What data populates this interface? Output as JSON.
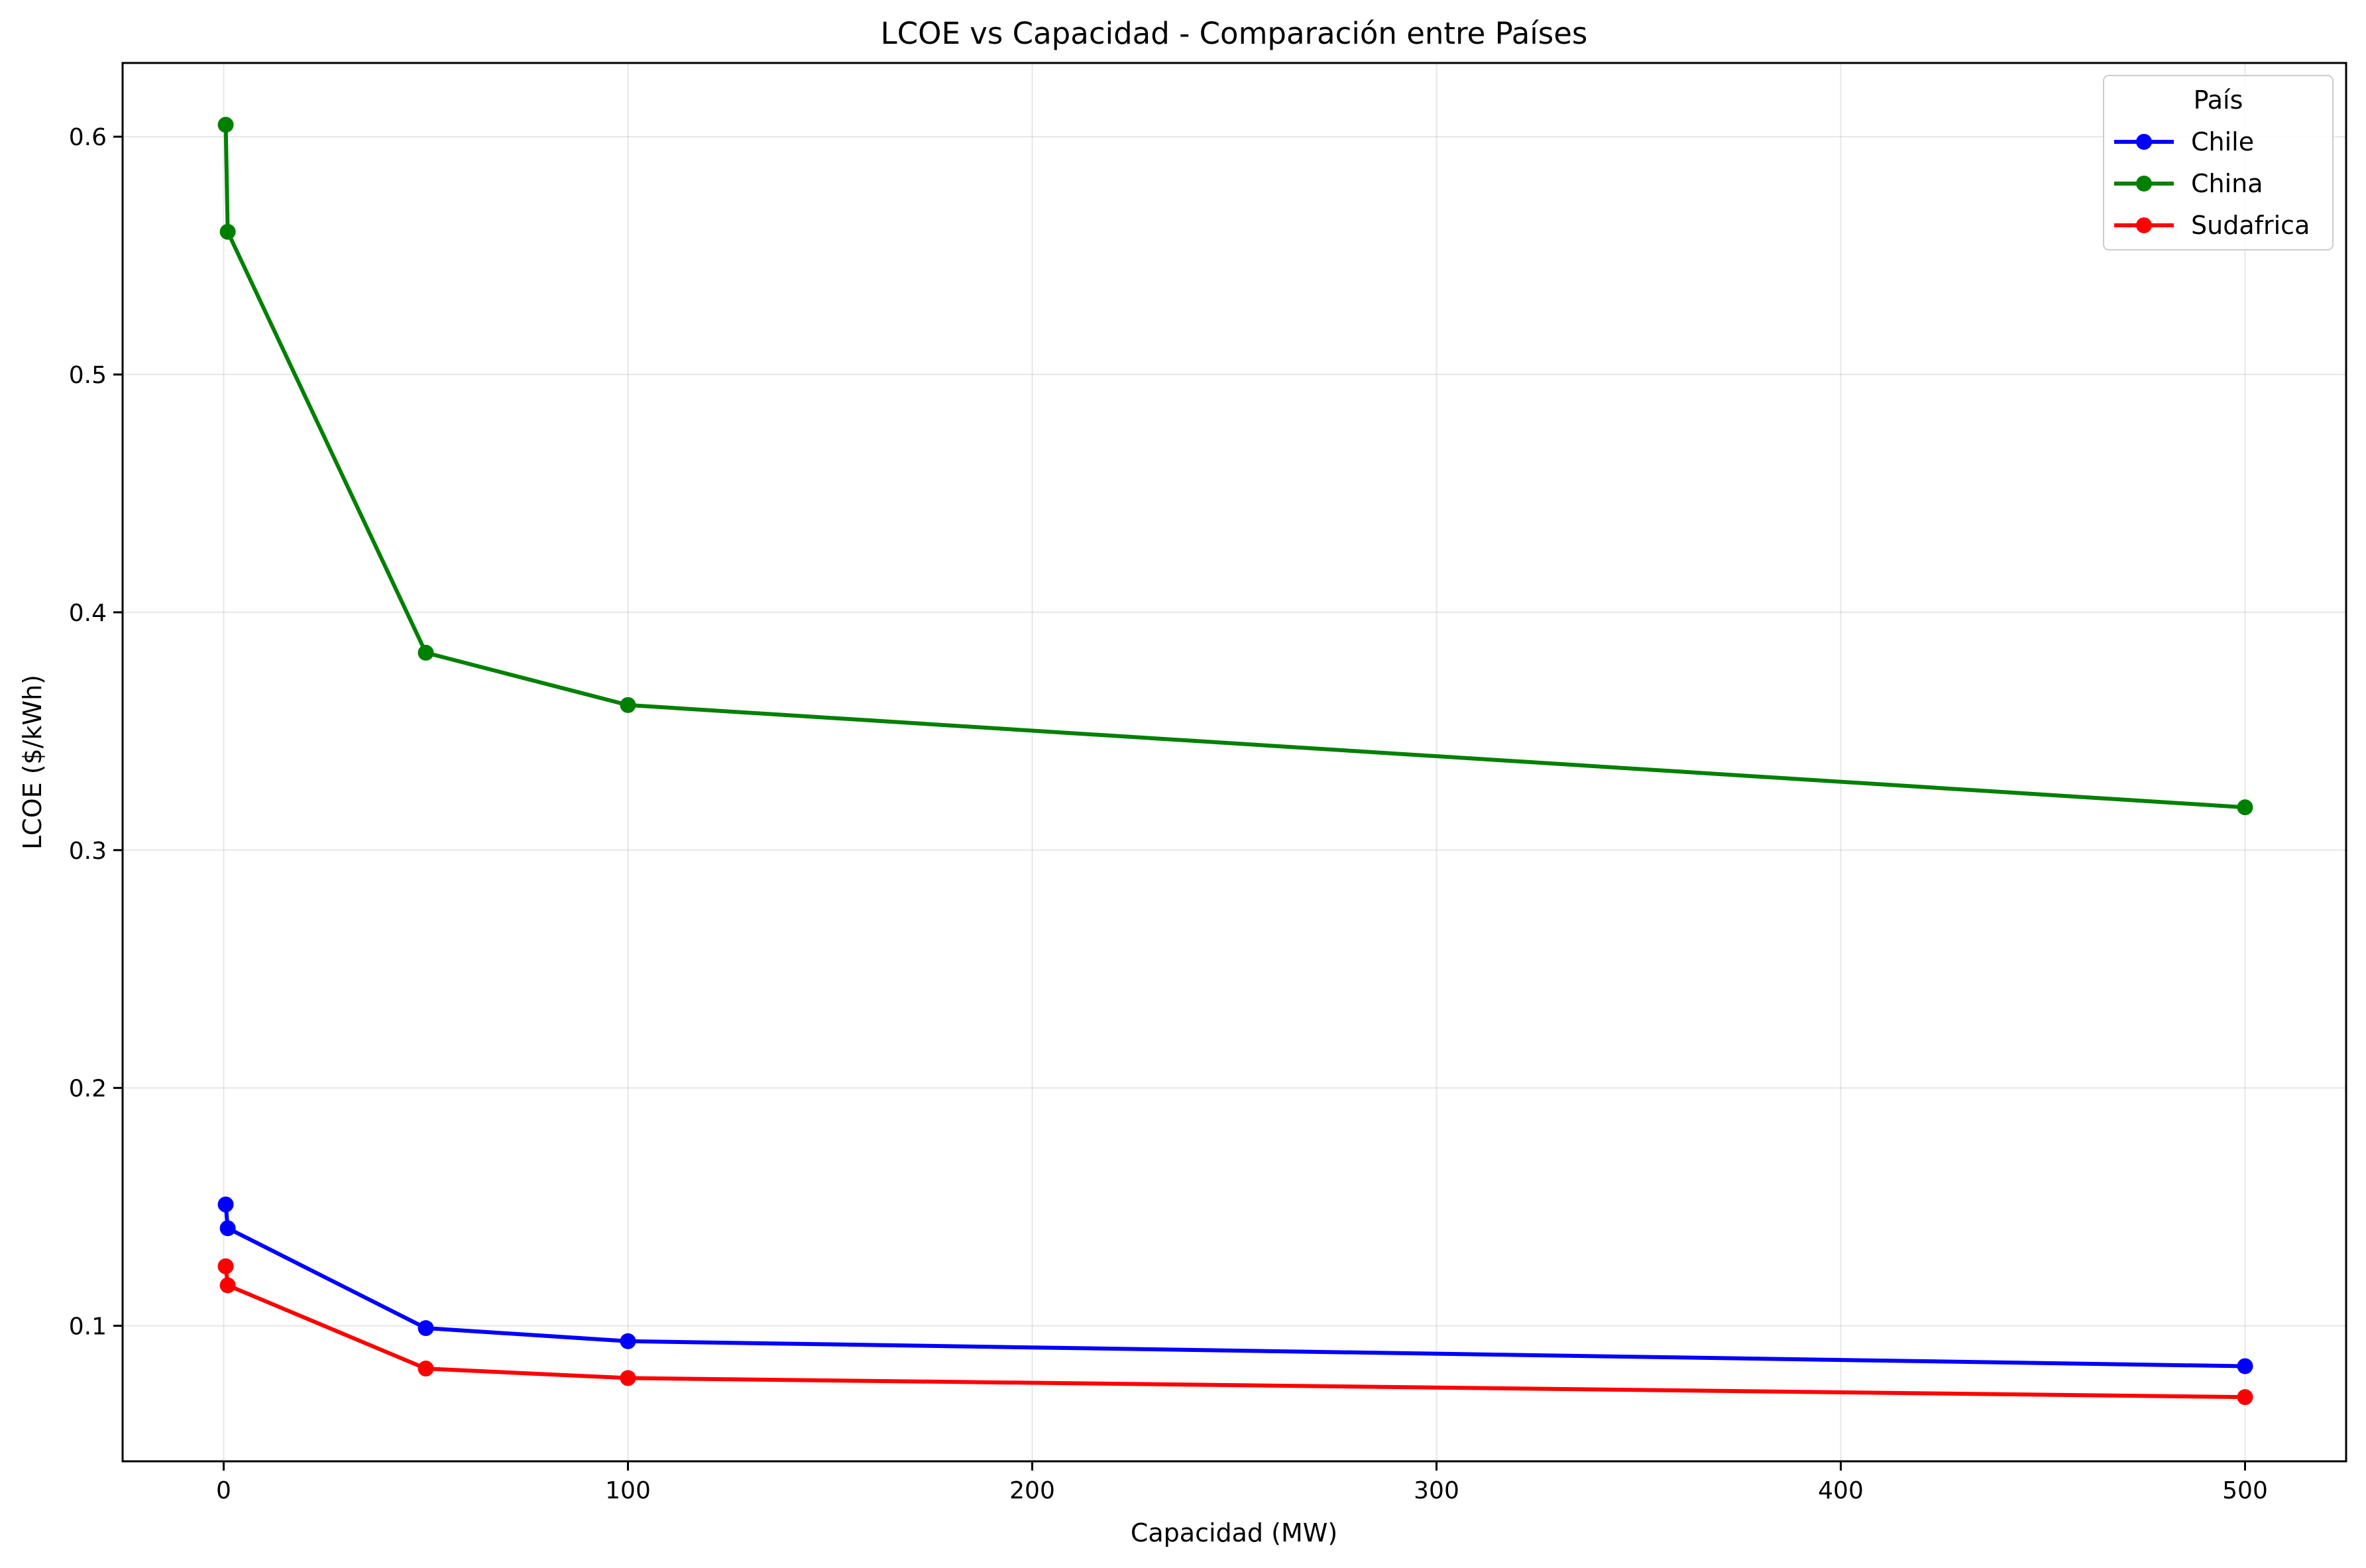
{
  "chart_data": {
    "type": "line",
    "title": "LCOE vs Capacidad - Comparación entre Países",
    "xlabel": "Capacidad (MW)",
    "ylabel": "LCOE ($/kWh)",
    "xlim": [
      -25,
      525
    ],
    "ylim": [
      0.043,
      0.631
    ],
    "xticks": [
      0,
      100,
      200,
      300,
      400,
      500
    ],
    "yticks": [
      0.1,
      0.2,
      0.3,
      0.4,
      0.5,
      0.6
    ],
    "xtick_labels": [
      "0",
      "100",
      "200",
      "300",
      "400",
      "500"
    ],
    "ytick_labels": [
      "0.1",
      "0.2",
      "0.3",
      "0.4",
      "0.5",
      "0.6"
    ],
    "grid": true,
    "legend": {
      "title": "País",
      "placement": "top-right"
    },
    "series": [
      {
        "name": "Chile",
        "color": "#0000ff",
        "points": [
          [
            0.5,
            0.151
          ],
          [
            1,
            0.141
          ],
          [
            50,
            0.099
          ],
          [
            100,
            0.0935
          ],
          [
            500,
            0.083
          ]
        ]
      },
      {
        "name": "China",
        "color": "#008000",
        "points": [
          [
            0.5,
            0.605
          ],
          [
            1,
            0.56
          ],
          [
            50,
            0.383
          ],
          [
            100,
            0.361
          ],
          [
            500,
            0.318
          ]
        ]
      },
      {
        "name": "Sudafrica",
        "color": "#ff0000",
        "points": [
          [
            0.5,
            0.125
          ],
          [
            1,
            0.117
          ],
          [
            50,
            0.082
          ],
          [
            100,
            0.078
          ],
          [
            500,
            0.07
          ]
        ]
      }
    ]
  }
}
